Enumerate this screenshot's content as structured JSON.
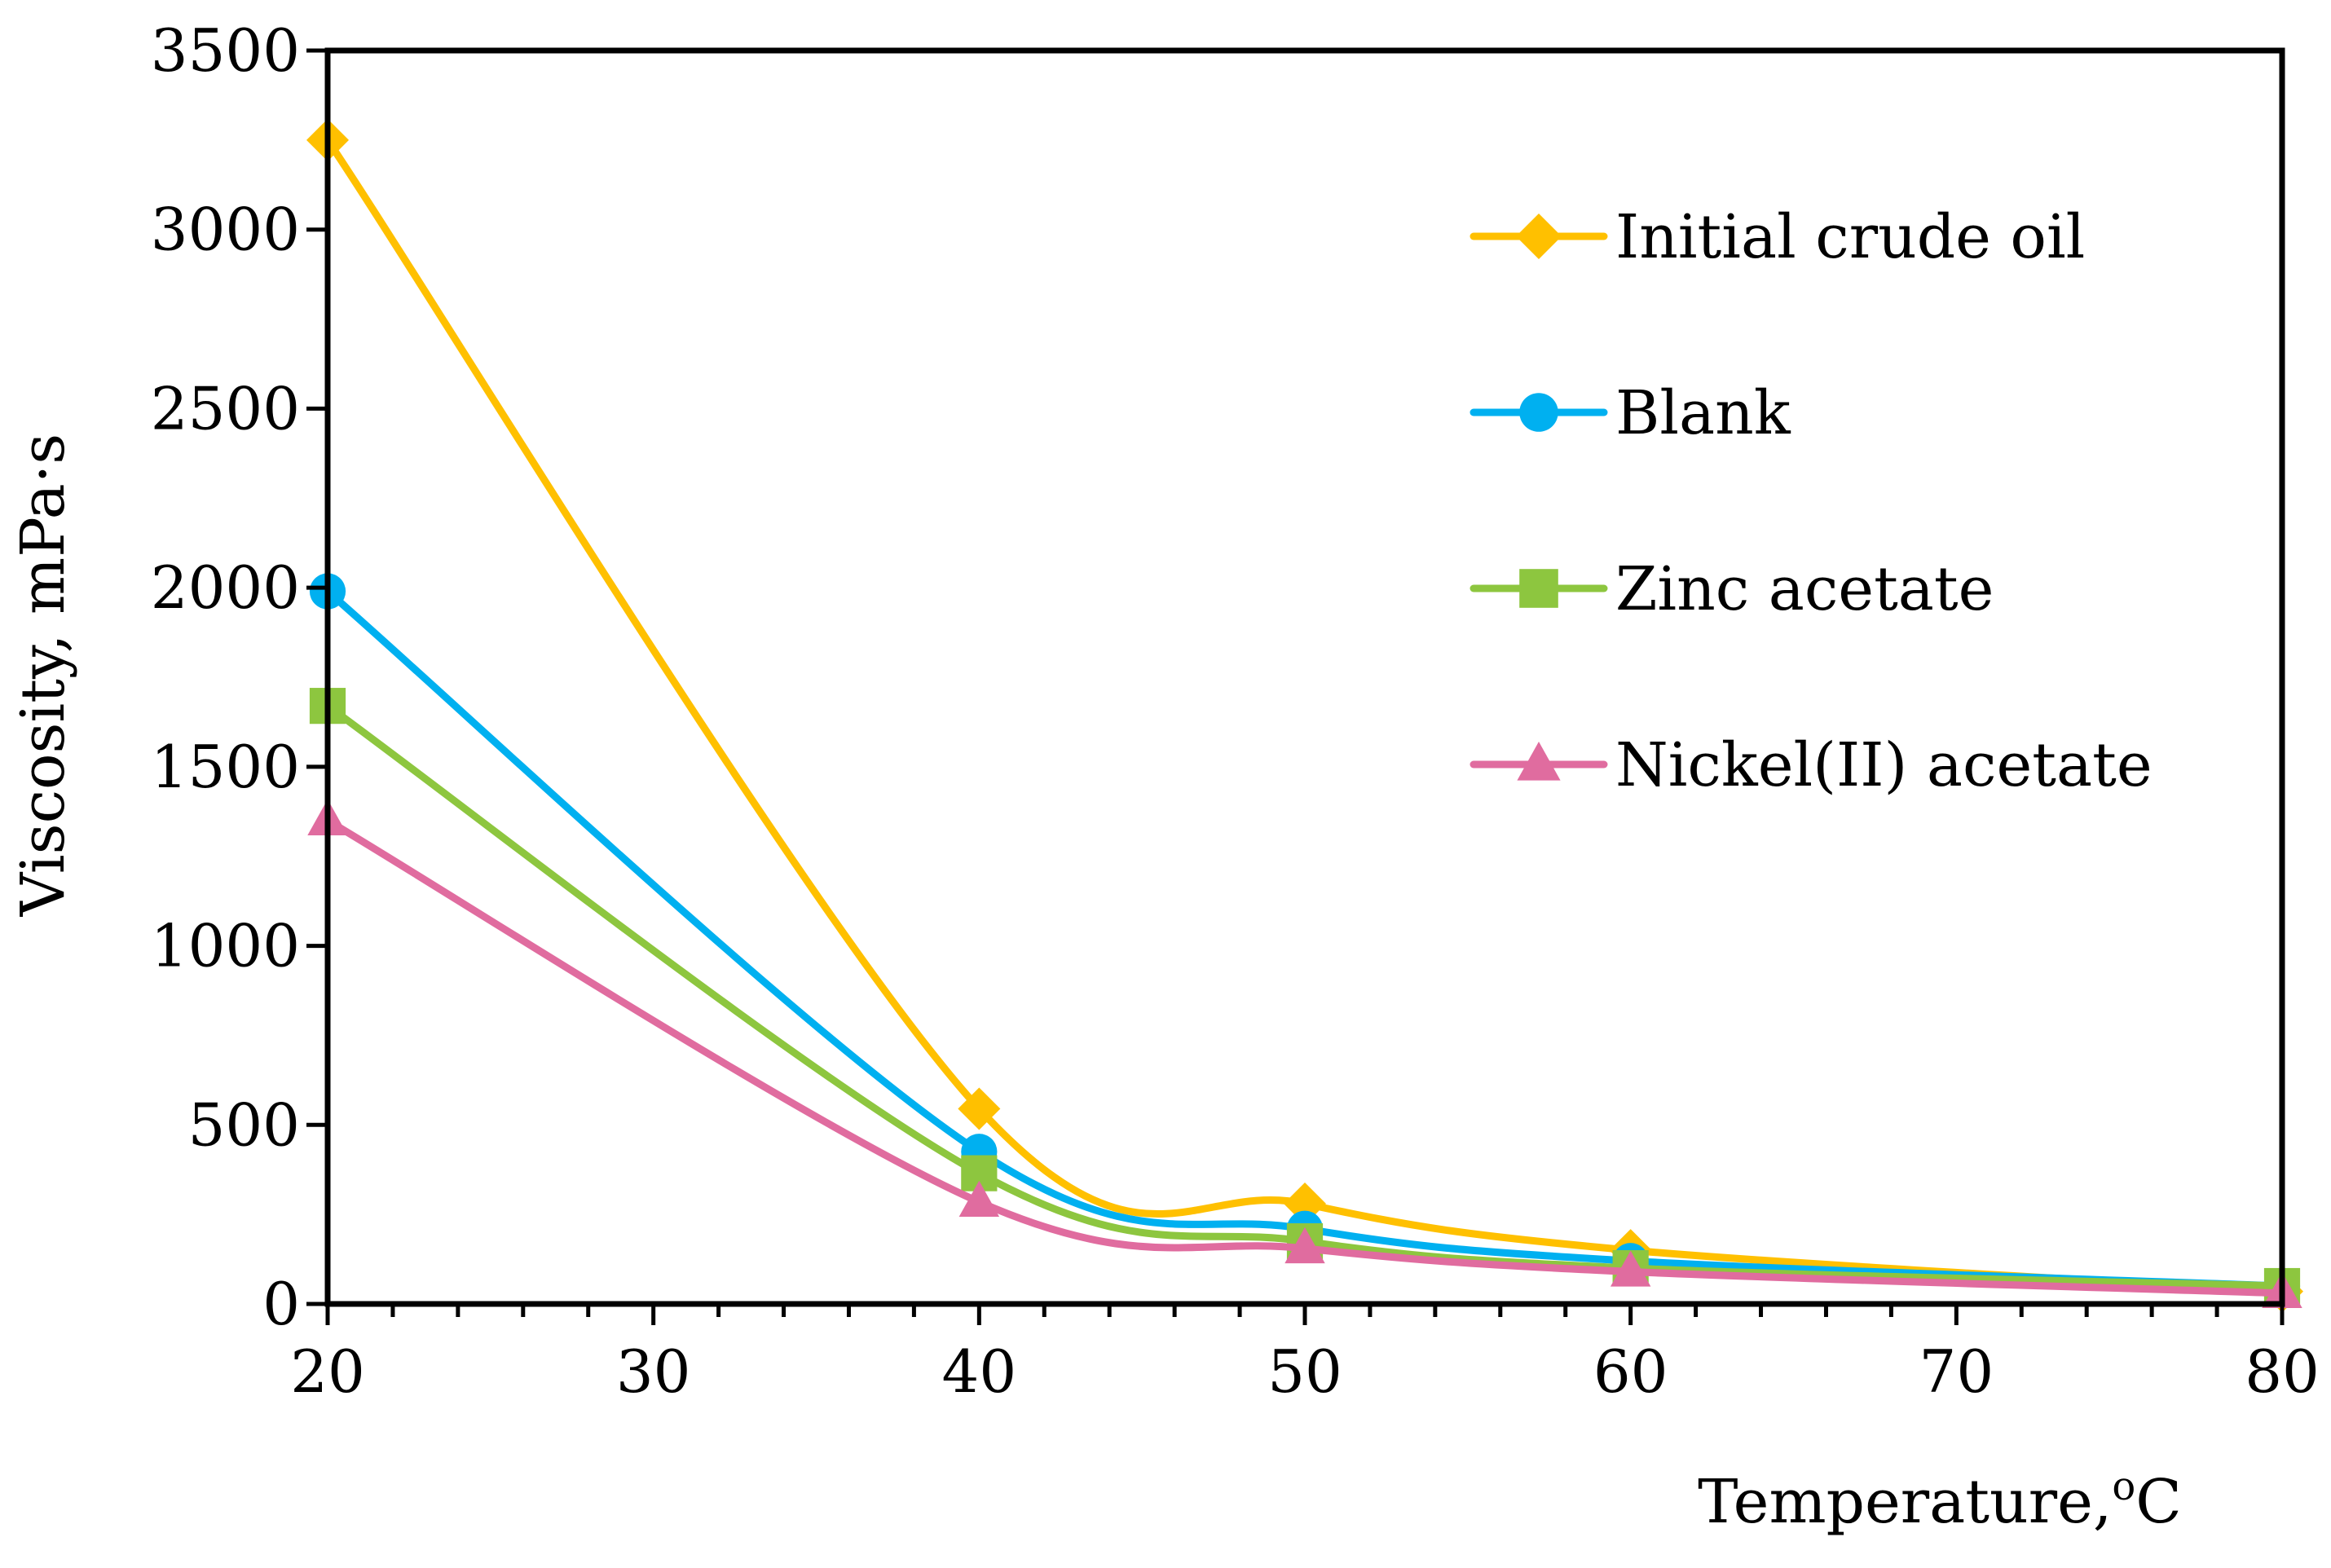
{
  "chart_data": {
    "type": "line",
    "title": "",
    "xlabel": "Temperature,",
    "xlabel_unit_sup": "o",
    "xlabel_unit": "C",
    "ylabel": "Viscosity, mPa·s",
    "xlim": [
      20,
      80
    ],
    "ylim": [
      0,
      3500
    ],
    "x_ticks": [
      20,
      30,
      40,
      50,
      60,
      70,
      80
    ],
    "y_ticks": [
      0,
      500,
      1000,
      1500,
      2000,
      2500,
      3000,
      3500
    ],
    "x_minor_step": 2,
    "grid": false,
    "legend_position": "top-right",
    "x": [
      20,
      40,
      50,
      60,
      80
    ],
    "series": [
      {
        "name": "Initial crude oil",
        "color": "#FFC000",
        "marker": "diamond",
        "values": [
          3250,
          545,
          280,
          150,
          35
        ]
      },
      {
        "name": "Blank",
        "color": "#00B0F0",
        "marker": "circle",
        "values": [
          1990,
          425,
          210,
          120,
          50
        ]
      },
      {
        "name": "Zinc acetate",
        "color": "#8DC63F",
        "marker": "square",
        "values": [
          1670,
          365,
          175,
          100,
          50
        ]
      },
      {
        "name": "Nickel(II) acetate",
        "color": "#E06C9F",
        "marker": "triangle",
        "values": [
          1350,
          285,
          155,
          90,
          30
        ]
      }
    ]
  }
}
